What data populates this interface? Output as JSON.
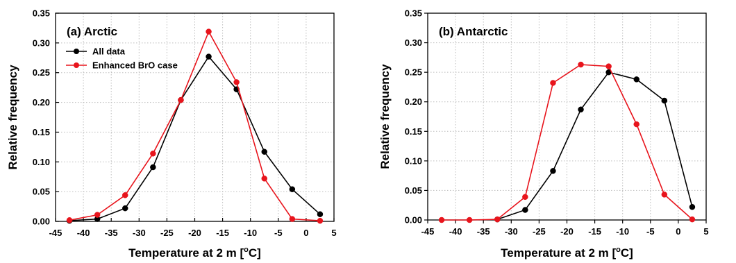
{
  "chart_data": [
    {
      "type": "line",
      "panel_label": "(a) Arctic",
      "xlabel": "Temperature at 2 m [",
      "xlabel_sup": "o",
      "xlabel_unit": "C]",
      "ylabel": "Relative frequency",
      "xlim": [
        -45,
        5
      ],
      "ylim": [
        0,
        0.35
      ],
      "xticks": [
        -45,
        -40,
        -35,
        -30,
        -25,
        -20,
        -15,
        -10,
        -5,
        0,
        5
      ],
      "xtick_labels": [
        "-45",
        "-40",
        "-35",
        "-30",
        "-25",
        "-20",
        "-15",
        "-10",
        "-5",
        "0",
        "5"
      ],
      "yticks": [
        0,
        0.05,
        0.1,
        0.15,
        0.2,
        0.25,
        0.3,
        0.35
      ],
      "ytick_labels": [
        "0.00",
        "0.05",
        "0.10",
        "0.15",
        "0.20",
        "0.25",
        "0.30",
        "0.35"
      ],
      "grid": true,
      "legend_position": "top-left",
      "x": [
        -42.5,
        -37.5,
        -32.5,
        -27.5,
        -22.5,
        -17.5,
        -12.5,
        -7.5,
        -2.5,
        2.5
      ],
      "series": [
        {
          "name": "All data",
          "color": "#000000",
          "values": [
            0.001,
            0.004,
            0.022,
            0.091,
            0.204,
            0.277,
            0.222,
            0.117,
            0.054,
            0.012
          ]
        },
        {
          "name": "Enhanced BrO case",
          "color": "#e8141c",
          "values": [
            0.002,
            0.011,
            0.044,
            0.114,
            0.204,
            0.319,
            0.234,
            0.072,
            0.004,
            0.001
          ]
        }
      ]
    },
    {
      "type": "line",
      "panel_label": "(b) Antarctic",
      "xlabel": "Temperature at 2 m [",
      "xlabel_sup": "o",
      "xlabel_unit": "C]",
      "ylabel": "Relative frequency",
      "xlim": [
        -45,
        5
      ],
      "ylim": [
        0,
        0.35
      ],
      "xticks": [
        -45,
        -40,
        -35,
        -30,
        -25,
        -20,
        -15,
        -10,
        -5,
        0,
        5
      ],
      "xtick_labels": [
        "-45",
        "-40",
        "-35",
        "-30",
        "-25",
        "-20",
        "-15",
        "-10",
        "-5",
        "0",
        "5"
      ],
      "yticks": [
        0,
        0.05,
        0.1,
        0.15,
        0.2,
        0.25,
        0.3,
        0.35
      ],
      "ytick_labels": [
        "0.00",
        "0.05",
        "0.10",
        "0.15",
        "0.20",
        "0.25",
        "0.30",
        "0.35"
      ],
      "grid": true,
      "legend_position": "none",
      "x": [
        -42.5,
        -37.5,
        -32.5,
        -27.5,
        -22.5,
        -17.5,
        -12.5,
        -7.5,
        -2.5,
        2.5
      ],
      "series": [
        {
          "color": "#000000",
          "x": [
            -32.5,
            -27.5,
            -22.5,
            -17.5,
            -12.5,
            -7.5,
            -2.5,
            2.5
          ],
          "values": [
            0.001,
            0.017,
            0.083,
            0.187,
            0.25,
            0.238,
            0.202,
            0.022
          ]
        },
        {
          "color": "#e8141c",
          "x": [
            -42.5,
            -37.5,
            -32.5,
            -27.5,
            -22.5,
            -17.5,
            -12.5,
            -7.5,
            -2.5,
            2.5
          ],
          "values": [
            0.0,
            0.0,
            0.001,
            0.039,
            0.232,
            0.263,
            0.26,
            0.162,
            0.043,
            0.001
          ]
        }
      ]
    }
  ]
}
